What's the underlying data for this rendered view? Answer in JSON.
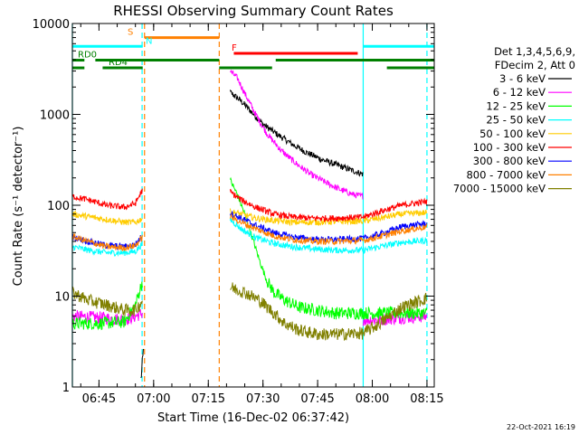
{
  "chart_data": {
    "type": "line",
    "title": "RHESSI Observing Summary Count Rates",
    "xlabel": "Start Time (16-Dec-02 06:37:42)",
    "ylabel": "Count Rate (s⁻¹ detector⁻¹)",
    "y_scale": "log",
    "ylim": [
      1,
      10000
    ],
    "xlim": [
      "06:37:42",
      "08:17:00"
    ],
    "x_ticks": [
      "06:45",
      "07:00",
      "07:15",
      "07:30",
      "07:45",
      "08:00",
      "08:15"
    ],
    "y_ticks": [
      "1",
      "10",
      "100",
      "1000",
      "10000"
    ],
    "grid": false,
    "legend_title": [
      "Det 1,3,4,5,6,9,",
      "FDecim 2, Att 0"
    ],
    "legend_position": "right",
    "timestamp": "22-Oct-2021 16:19",
    "series": [
      {
        "name": "3 - 6 keV",
        "color": "#000000",
        "segments": [
          {
            "x": [
              "06:56:30",
              "06:57:00",
              "06:57:20"
            ],
            "y": [
              1.2,
              2.0,
              3.0
            ]
          },
          {
            "x": [
              "07:21:00",
              "07:24:00",
              "07:27:00",
              "07:30:00",
              "07:34:00",
              "07:38:00",
              "07:42:00",
              "07:46:00",
              "07:50:00",
              "07:54:00",
              "07:57:30"
            ],
            "y": [
              1750,
              1400,
              1050,
              780,
              600,
              470,
              380,
              320,
              280,
              245,
              220
            ]
          }
        ]
      },
      {
        "name": "6 - 12 keV",
        "color": "#ff00ff",
        "segments": [
          {
            "x": [
              "06:37:42",
              "06:45:00",
              "06:52:00",
              "06:55:00",
              "06:57:00"
            ],
            "y": [
              6,
              5.8,
              5.5,
              6,
              6.5
            ]
          },
          {
            "x": [
              "07:21:00",
              "07:23:00",
              "07:25:00",
              "07:28:00",
              "07:31:00",
              "07:35:00",
              "07:39:00",
              "07:43:00",
              "07:47:00",
              "07:51:00",
              "07:55:00",
              "07:57:30"
            ],
            "y": [
              3000,
              2500,
              1700,
              1000,
              620,
              400,
              290,
              220,
              180,
              150,
              130,
              125
            ]
          },
          {
            "x": [
              "07:57:30",
              "08:02:00",
              "08:08:00",
              "08:15:00"
            ],
            "y": [
              5.5,
              5.5,
              5.8,
              6
            ]
          }
        ]
      },
      {
        "name": "12 - 25 keV",
        "color": "#00ff00",
        "segments": [
          {
            "x": [
              "06:37:42",
              "06:45:00",
              "06:52:00",
              "06:55:00",
              "06:57:00"
            ],
            "y": [
              5,
              5,
              5.2,
              8,
              15
            ]
          },
          {
            "x": [
              "07:21:00",
              "07:23:00",
              "07:25:00",
              "07:27:00",
              "07:29:00",
              "07:31:00",
              "07:33:00",
              "07:36:00",
              "07:40:00",
              "07:45:00",
              "07:50:00",
              "07:57:30"
            ],
            "y": [
              190,
              130,
              80,
              45,
              25,
              15,
              11,
              9,
              7.5,
              7,
              6.5,
              6.5
            ]
          },
          {
            "x": [
              "07:57:30",
              "08:05:00",
              "08:15:00"
            ],
            "y": [
              6.5,
              6.5,
              6.5
            ]
          }
        ]
      },
      {
        "name": "25 - 50 keV",
        "color": "#00ffff",
        "segments": [
          {
            "x": [
              "06:37:42",
              "06:42:00",
              "06:47:00",
              "06:52:00",
              "06:55:00",
              "06:57:00"
            ],
            "y": [
              35,
              32,
              30,
              30,
              31,
              38
            ]
          },
          {
            "x": [
              "07:21:00",
              "07:24:00",
              "07:28:00",
              "07:33:00",
              "07:38:00",
              "07:44:00",
              "07:50:00",
              "07:57:30"
            ],
            "y": [
              70,
              55,
              44,
              38,
              35,
              33,
              32,
              32
            ]
          },
          {
            "x": [
              "07:57:30",
              "08:02:00",
              "08:08:00",
              "08:15:00"
            ],
            "y": [
              32,
              35,
              39,
              41
            ]
          }
        ]
      },
      {
        "name": "50 - 100 keV",
        "color": "#ffcc00",
        "segments": [
          {
            "x": [
              "06:37:42",
              "06:42:00",
              "06:47:00",
              "06:52:00",
              "06:55:00",
              "06:57:00"
            ],
            "y": [
              80,
              75,
              70,
              65,
              65,
              72
            ]
          },
          {
            "x": [
              "07:21:00",
              "07:24:00",
              "07:28:00",
              "07:33:00",
              "07:38:00",
              "07:44:00",
              "07:50:00",
              "07:57:30"
            ],
            "y": [
              85,
              80,
              72,
              68,
              65,
              65,
              66,
              67
            ]
          },
          {
            "x": [
              "07:57:30",
              "08:02:00",
              "08:08:00",
              "08:15:00"
            ],
            "y": [
              67,
              72,
              80,
              83
            ]
          }
        ]
      },
      {
        "name": "100 - 300 keV",
        "color": "#ff0000",
        "segments": [
          {
            "x": [
              "06:37:42",
              "06:42:00",
              "06:47:00",
              "06:52:00",
              "06:55:00",
              "06:57:00"
            ],
            "y": [
              125,
              115,
              100,
              95,
              105,
              150
            ]
          },
          {
            "x": [
              "07:21:00",
              "07:24:00",
              "07:28:00",
              "07:33:00",
              "07:38:00",
              "07:44:00",
              "07:50:00",
              "07:57:30"
            ],
            "y": [
              140,
              115,
              95,
              80,
              74,
              72,
              72,
              74
            ]
          },
          {
            "x": [
              "07:57:30",
              "08:02:00",
              "08:08:00",
              "08:15:00"
            ],
            "y": [
              74,
              85,
              100,
              110
            ]
          }
        ]
      },
      {
        "name": "300 - 800 keV",
        "color": "#0000ff",
        "segments": [
          {
            "x": [
              "06:37:42",
              "06:42:00",
              "06:47:00",
              "06:52:00",
              "06:55:00",
              "06:57:00"
            ],
            "y": [
              45,
              40,
              36,
              35,
              37,
              47
            ]
          },
          {
            "x": [
              "07:21:00",
              "07:24:00",
              "07:28:00",
              "07:33:00",
              "07:38:00",
              "07:44:00",
              "07:50:00",
              "07:57:30"
            ],
            "y": [
              82,
              72,
              60,
              50,
              45,
              42,
              42,
              43
            ]
          },
          {
            "x": [
              "07:57:30",
              "08:02:00",
              "08:08:00",
              "08:15:00"
            ],
            "y": [
              43,
              48,
              58,
              63
            ]
          }
        ]
      },
      {
        "name": "800 - 7000 keV",
        "color": "#ff8000",
        "segments": [
          {
            "x": [
              "06:37:42",
              "06:42:00",
              "06:47:00",
              "06:52:00",
              "06:55:00",
              "06:57:00"
            ],
            "y": [
              45,
              40,
              35,
              34,
              36,
              45
            ]
          },
          {
            "x": [
              "07:21:00",
              "07:24:00",
              "07:28:00",
              "07:33:00",
              "07:38:00",
              "07:44:00",
              "07:50:00",
              "07:57:30"
            ],
            "y": [
              75,
              65,
              55,
              46,
              42,
              40,
              40,
              41
            ]
          },
          {
            "x": [
              "07:57:30",
              "08:02:00",
              "08:08:00",
              "08:15:00"
            ],
            "y": [
              41,
              45,
              52,
              58
            ]
          }
        ]
      },
      {
        "name": "7000 - 15000 keV",
        "color": "#808000",
        "segments": [
          {
            "x": [
              "06:37:42",
              "06:42:00",
              "06:47:00",
              "06:52:00",
              "06:55:00",
              "06:57:00"
            ],
            "y": [
              11,
              9,
              8,
              7,
              7,
              9
            ]
          },
          {
            "x": [
              "07:21:00",
              "07:25:00",
              "07:29:00",
              "07:33:00",
              "07:36:00",
              "07:40:00",
              "07:45:00",
              "07:50:00",
              "07:57:30"
            ],
            "y": [
              12.5,
              11,
              9,
              6.5,
              5,
              4.2,
              3.8,
              3.8,
              3.9
            ]
          },
          {
            "x": [
              "07:57:30",
              "08:02:00",
              "08:08:00",
              "08:15:00"
            ],
            "y": [
              3.9,
              5,
              7.5,
              9.5
            ]
          }
        ]
      }
    ],
    "state_bars": [
      {
        "label": "S",
        "color": "#ff8000",
        "level": 7000,
        "segments": [
          [
            "06:57:30",
            "07:18:00"
          ]
        ]
      },
      {
        "label": "N",
        "color": "#00ffff",
        "level": 5600,
        "segments": [
          [
            "06:37:42",
            "06:57:00"
          ],
          [
            "07:57:30",
            "08:17:00"
          ]
        ]
      },
      {
        "label": "F",
        "color": "#ff0000",
        "level": 4700,
        "segments": [
          [
            "07:22:00",
            "07:56:00"
          ]
        ]
      },
      {
        "label": "RD0",
        "color": "#008000",
        "level": 3950,
        "segments": [
          [
            "06:37:42",
            "06:41:00"
          ],
          [
            "06:44:00",
            "07:18:00"
          ],
          [
            "07:33:30",
            "08:17:00"
          ]
        ]
      },
      {
        "label": "RD4",
        "color": "#008000",
        "level": 3250,
        "segments": [
          [
            "06:37:42",
            "06:41:00"
          ],
          [
            "06:46:00",
            "06:57:00"
          ],
          [
            "07:18:00",
            "07:32:30"
          ],
          [
            "08:04:00",
            "08:17:00"
          ]
        ]
      }
    ],
    "vlines": [
      {
        "x": "06:37:42",
        "color": "#00ffff",
        "dash": false
      },
      {
        "x": "06:56:50",
        "color": "#00ffff",
        "dash": true
      },
      {
        "x": "06:57:30",
        "color": "#ff8000",
        "dash": true
      },
      {
        "x": "07:18:00",
        "color": "#ff8000",
        "dash": true
      },
      {
        "x": "07:57:30",
        "color": "#00ffff",
        "dash": false
      },
      {
        "x": "08:15:00",
        "color": "#00ffff",
        "dash": true
      }
    ]
  }
}
